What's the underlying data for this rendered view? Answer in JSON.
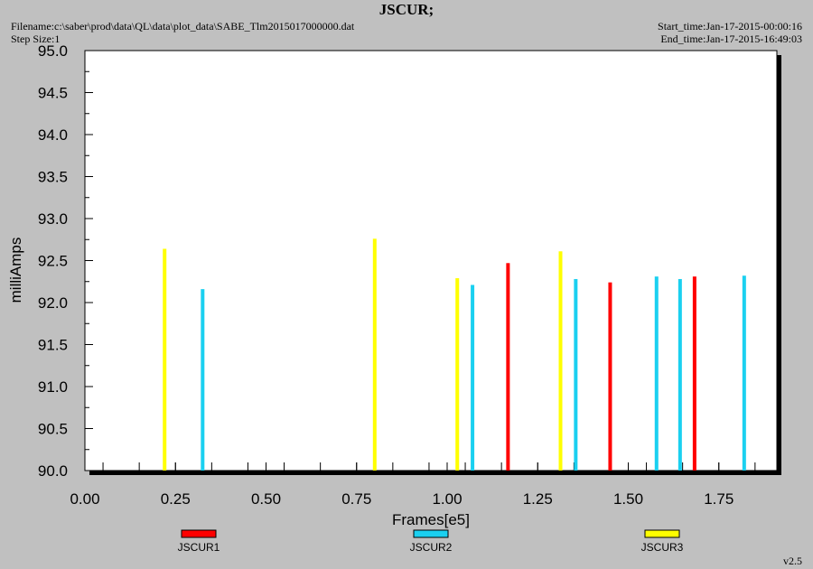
{
  "header": {
    "title": "JSCUR;",
    "filename": "Filename:c:\\saber\\prod\\data\\QL\\data\\plot_data\\SABE_Tlm2015017000000.dat",
    "step_size": "Step Size:1",
    "start_time": "Start_time:Jan-17-2015-00:00:16",
    "end_time": "End_time:Jan-17-2015-16:49:03"
  },
  "footer": {
    "version": "v2.5"
  },
  "chart_data": {
    "type": "bar",
    "xlabel": "Frames[e5]",
    "ylabel": "milliAmps",
    "xlim": [
      0.0,
      1.9
    ],
    "ylim": [
      90.0,
      95.0
    ],
    "xticks": [
      "0.00",
      "0.25",
      "0.50",
      "0.75",
      "1.00",
      "1.25",
      "1.50",
      "1.75"
    ],
    "yticks": [
      "90.0",
      "90.5",
      "91.0",
      "91.5",
      "92.0",
      "92.5",
      "93.0",
      "93.5",
      "94.0",
      "94.5",
      "95.0"
    ],
    "grid": false,
    "legend": "bottom",
    "series": [
      {
        "name": "JSCUR1",
        "color": "#ff0000",
        "points": [
          [
            1.168,
            92.47
          ],
          [
            1.45,
            92.24
          ],
          [
            1.683,
            92.31
          ]
        ]
      },
      {
        "name": "JSCUR2",
        "color": "#1ad0f0",
        "points": [
          [
            0.325,
            92.16
          ],
          [
            1.07,
            92.21
          ],
          [
            1.355,
            92.28
          ],
          [
            1.578,
            92.31
          ],
          [
            1.643,
            92.28
          ],
          [
            1.82,
            92.32
          ]
        ]
      },
      {
        "name": "JSCUR3",
        "color": "#ffff00",
        "points": [
          [
            0.22,
            92.64
          ],
          [
            0.8,
            92.76
          ],
          [
            1.028,
            92.29
          ],
          [
            1.313,
            92.61
          ]
        ]
      }
    ]
  }
}
